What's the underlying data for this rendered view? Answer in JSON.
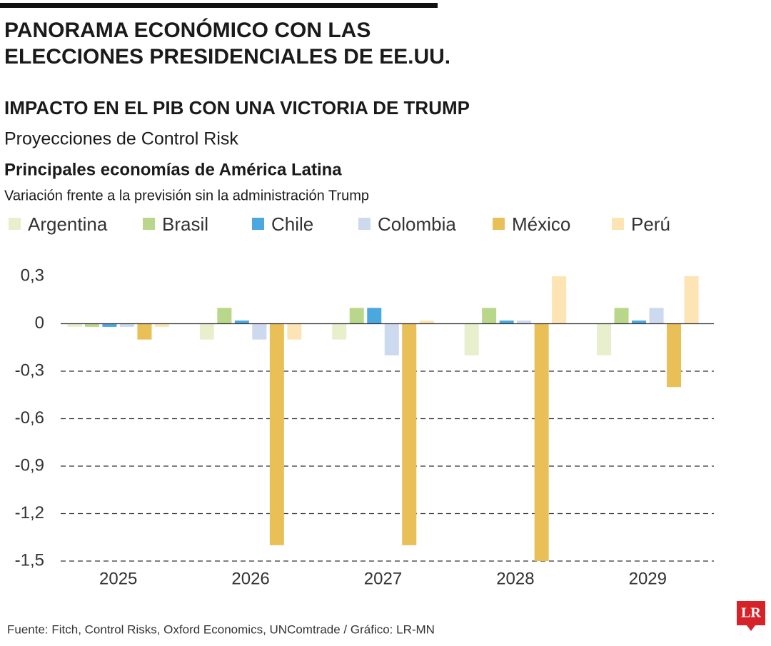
{
  "chart_data": {
    "type": "bar",
    "title": [
      "PANORAMA ECONÓMICO CON LAS",
      "ELECCIONES PRESIDENCIALES DE EE.UU."
    ],
    "subtitle": "IMPACTO EN EL PIB CON UNA VICTORIA DE TRUMP",
    "note": "Proyecciones de Control Risk",
    "section_title": "Principales economías de América Latina",
    "y_label": "Variación frente a la previsión sin la administración Trump",
    "footer": "Fuente: Fitch, Control Risks, Oxford Economics, UNComtrade / Gráfico: LR-MN",
    "logo": "LR",
    "categories": [
      "2025",
      "2026",
      "2027",
      "2028",
      "2029"
    ],
    "series": [
      {
        "name": "Argentina",
        "color": "#e8efcc",
        "values": [
          -0.02,
          -0.1,
          -0.1,
          -0.2,
          -0.2
        ]
      },
      {
        "name": "Brasil",
        "color": "#b8d78a",
        "values": [
          -0.02,
          0.1,
          0.1,
          0.1,
          0.1
        ]
      },
      {
        "name": "Chile",
        "color": "#4aa8de",
        "values": [
          -0.02,
          0.02,
          0.1,
          0.02,
          0.02
        ]
      },
      {
        "name": "Colombia",
        "color": "#ccd9ef",
        "values": [
          -0.02,
          -0.1,
          -0.2,
          0.02,
          0.1
        ]
      },
      {
        "name": "México",
        "color": "#e9bf58",
        "values": [
          -0.1,
          -1.4,
          -1.4,
          -1.5,
          -0.4
        ]
      },
      {
        "name": "Perú",
        "color": "#fde4b5",
        "values": [
          -0.02,
          -0.1,
          0.02,
          0.3,
          0.3
        ]
      }
    ],
    "ylim": [
      -1.5,
      0.3
    ],
    "yticks": [
      {
        "value": 0.3,
        "label": "0,3"
      },
      0,
      {
        "value": -0.3,
        "label": "-0,3"
      },
      {
        "value": -0.6,
        "label": "-0,6"
      },
      {
        "value": -0.9,
        "label": "-0,9"
      },
      {
        "value": -1.2,
        "label": "-1,2"
      },
      {
        "value": -1.5,
        "label": "-1,5"
      }
    ],
    "grid": true
  }
}
